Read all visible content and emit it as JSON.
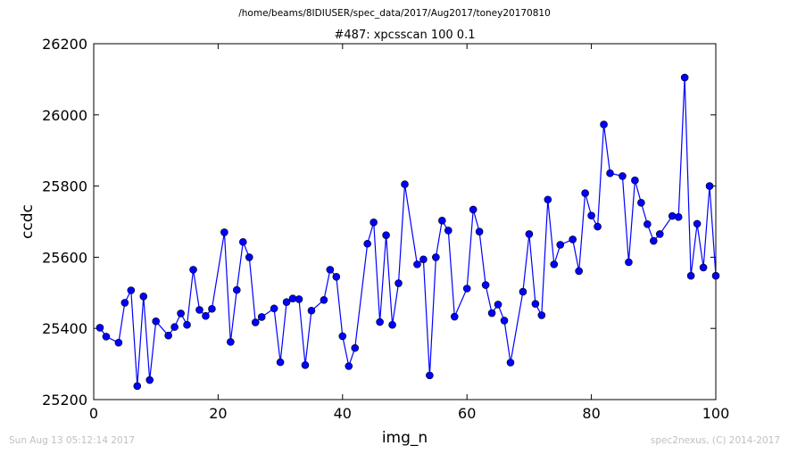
{
  "header": {
    "path": "/home/beams/8IDIUSER/spec_data/2017/Aug2017/toney20170810"
  },
  "footer": {
    "timestamp": "Sun Aug 13 05:12:14 2017",
    "credit": "spec2nexus, (C) 2014-2017"
  },
  "colors": {
    "series": "#0000ff",
    "marker_edge": "#000000",
    "footer_text": "#c0c0c0"
  },
  "chart_data": {
    "type": "line",
    "title": "#487: xpcsscan 100 0.1",
    "xlabel": "img_n",
    "ylabel": "ccdc",
    "xlim": [
      0,
      100
    ],
    "ylim": [
      25200,
      26200
    ],
    "xticks": [
      0,
      20,
      40,
      60,
      80,
      100
    ],
    "yticks": [
      25200,
      25400,
      25600,
      25800,
      26000,
      26200
    ],
    "grid": false,
    "legend": false,
    "markers": "circle",
    "series": [
      {
        "x": [
          1,
          2,
          4,
          5,
          6,
          7,
          8,
          9,
          10,
          12,
          13,
          14,
          15,
          16,
          17,
          18,
          19,
          21,
          22,
          23,
          24,
          25,
          26,
          27,
          29,
          30,
          31,
          32,
          33,
          34,
          35,
          37,
          38,
          39,
          40,
          41,
          42,
          44,
          45,
          46,
          47,
          48,
          49,
          50,
          52,
          53,
          54,
          55,
          56,
          57,
          58,
          60,
          61,
          62,
          63,
          64,
          65,
          66,
          67,
          69,
          70,
          71,
          72,
          73,
          74,
          75,
          77,
          78,
          79,
          80,
          81,
          82,
          83,
          85,
          86,
          87,
          88,
          89,
          90,
          91,
          93,
          94,
          95,
          96,
          97,
          98,
          99,
          100
        ],
        "y": [
          25402,
          25377,
          25360,
          25472,
          25507,
          25238,
          25490,
          25255,
          25420,
          25380,
          25404,
          25442,
          25410,
          25565,
          25452,
          25435,
          25455,
          25670,
          25362,
          25508,
          25643,
          25600,
          25417,
          25432,
          25456,
          25305,
          25474,
          25484,
          25482,
          25297,
          25450,
          25480,
          25565,
          25545,
          25378,
          25294,
          25345,
          25638,
          25698,
          25418,
          25662,
          25410,
          25527,
          25805,
          25580,
          25594,
          25268,
          25600,
          25703,
          25675,
          25433,
          25512,
          25734,
          25672,
          25522,
          25443,
          25467,
          25422,
          25304,
          25503,
          25665,
          25469,
          25437,
          25762,
          25580,
          25635,
          25650,
          25561,
          25780,
          25717,
          25686,
          25973,
          25836,
          25828,
          25586,
          25816,
          25753,
          25693,
          25646,
          25665,
          25716,
          25713,
          26105,
          25548,
          25694,
          25571,
          25800,
          25548
        ]
      }
    ]
  }
}
